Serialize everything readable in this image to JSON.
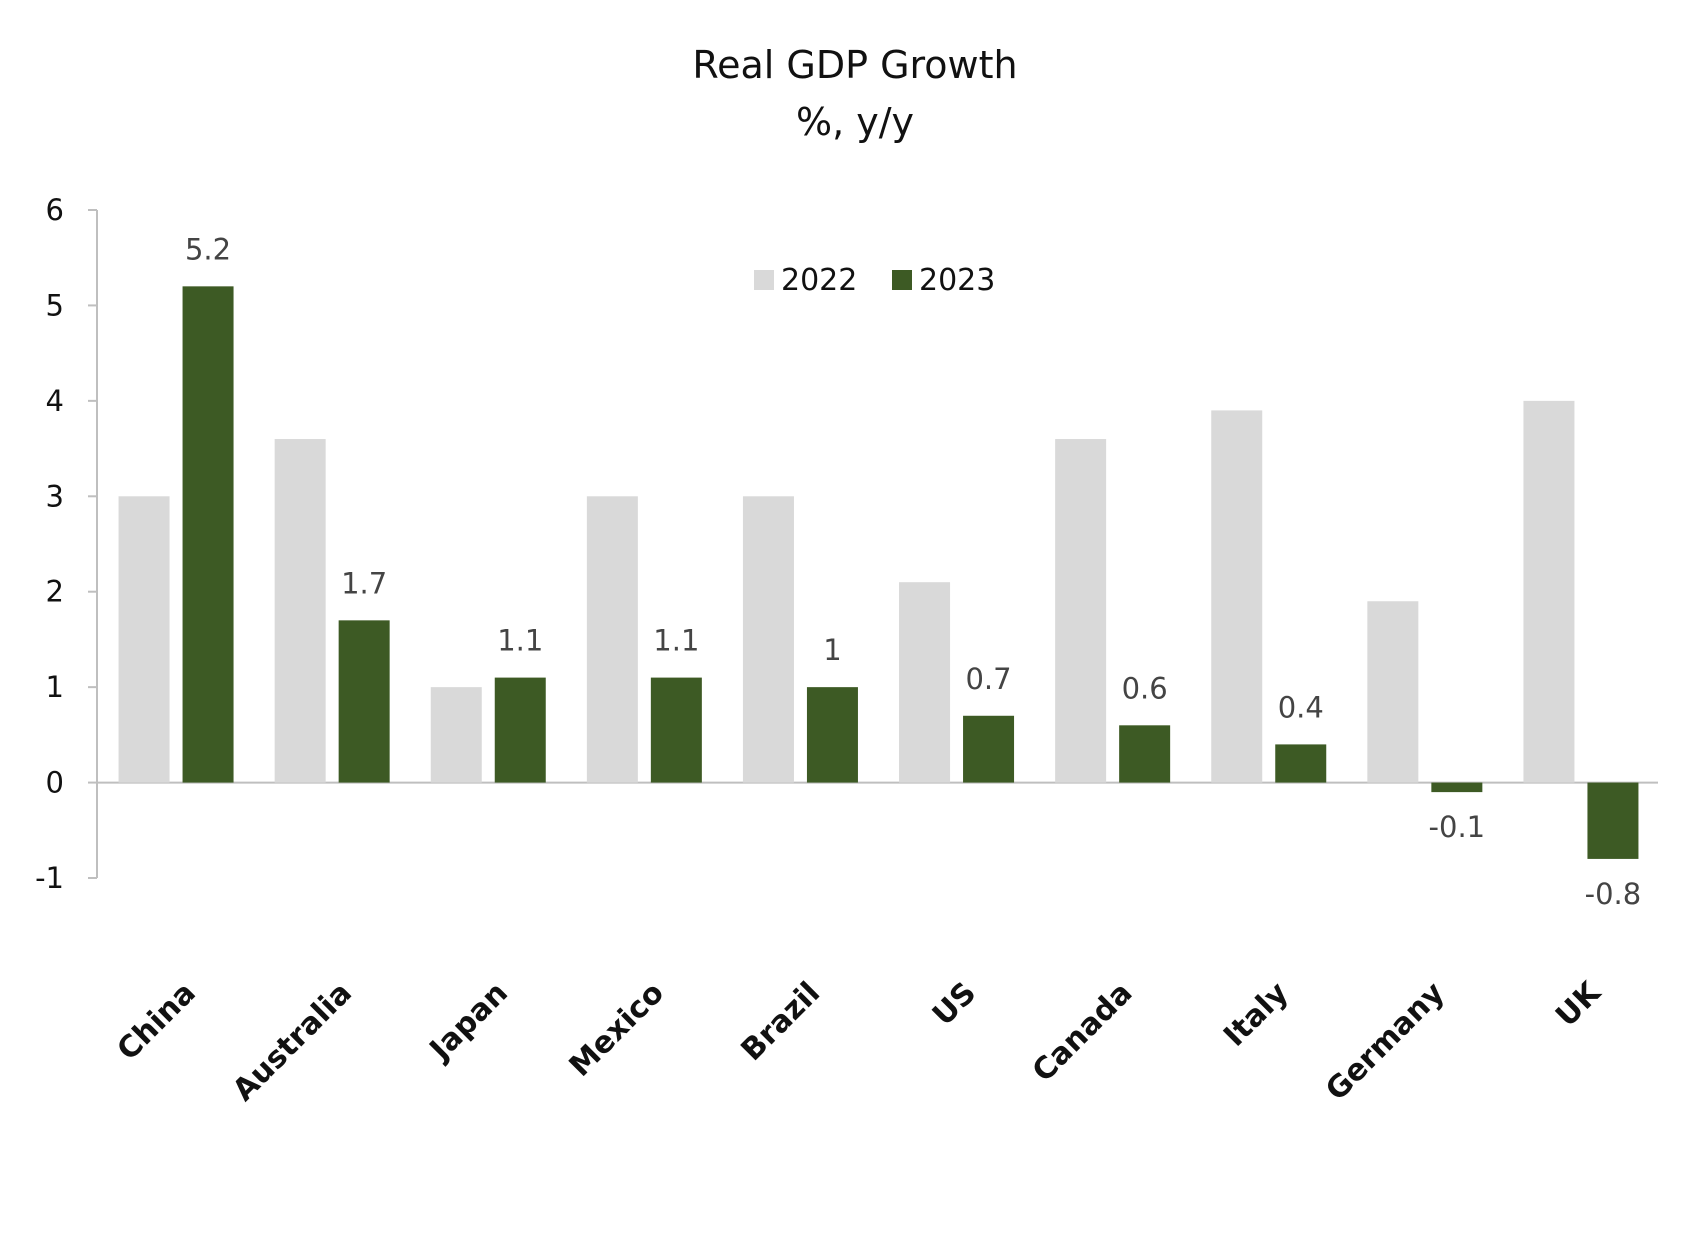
{
  "chart_data": {
    "type": "bar",
    "title": "Real GDP Growth",
    "subtitle": "%, y/y",
    "xlabel": "",
    "ylabel": "",
    "categories": [
      "China",
      "Australia",
      "Japan",
      "Mexico",
      "Brazil",
      "US",
      "Canada",
      "Italy",
      "Germany",
      "UK"
    ],
    "series": [
      {
        "name": "2022",
        "color": "#d9d9d9",
        "values": [
          3.0,
          3.6,
          1.0,
          3.0,
          3.0,
          2.1,
          3.6,
          3.9,
          1.9,
          4.0
        ]
      },
      {
        "name": "2023",
        "color": "#3d5a24",
        "values": [
          5.2,
          1.7,
          1.1,
          1.1,
          1.0,
          0.7,
          0.6,
          0.4,
          -0.1,
          -0.8
        ],
        "data_labels": [
          "5.2",
          "1.7",
          "1.1",
          "1.1",
          "1",
          "0.7",
          "0.6",
          "0.4",
          "-0.1",
          "-0.8"
        ]
      }
    ],
    "ylim": [
      -1,
      6
    ],
    "yticks": [
      "-1",
      "0",
      "1",
      "2",
      "3",
      "4",
      "5",
      "6"
    ],
    "grid": false,
    "legend": "top-center"
  }
}
